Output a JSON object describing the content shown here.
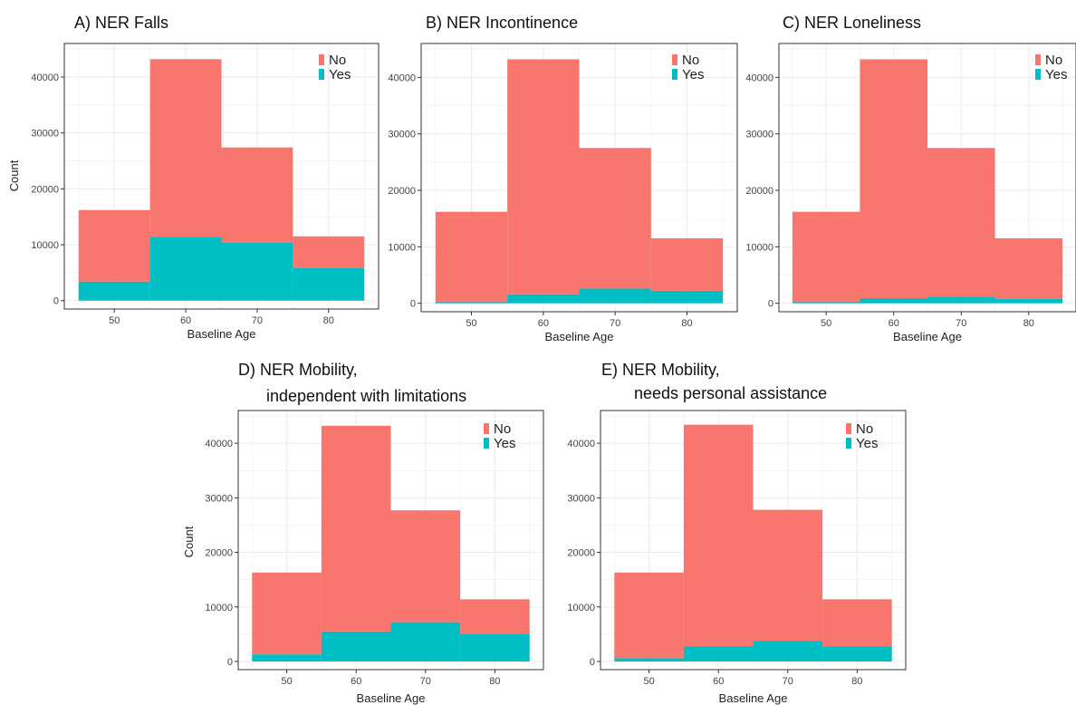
{
  "colors": {
    "no": "#F8766D",
    "yes": "#00BFC4"
  },
  "chart_data": [
    {
      "type": "bar",
      "title": "A) NER Falls",
      "xlabel": "Baseline Age",
      "ylabel": "Count",
      "xlim": [
        43,
        87
      ],
      "ylim": [
        -1500,
        46000
      ],
      "xticks": [
        50,
        60,
        70,
        80
      ],
      "yticks": [
        0,
        10000,
        20000,
        30000,
        40000
      ],
      "bins": [
        [
          45,
          55
        ],
        [
          55,
          65
        ],
        [
          65,
          75
        ],
        [
          75,
          85
        ]
      ],
      "legend": "top-right",
      "grid": true,
      "series": [
        {
          "name": "No",
          "values": [
            12800,
            31800,
            17000,
            5700
          ]
        },
        {
          "name": "Yes",
          "values": [
            3400,
            11400,
            10400,
            5800
          ]
        }
      ]
    },
    {
      "type": "bar",
      "title": "B) NER Incontinence",
      "xlabel": "Baseline Age",
      "ylabel": "",
      "xlim": [
        43,
        87
      ],
      "ylim": [
        -1500,
        46000
      ],
      "xticks": [
        50,
        60,
        70,
        80
      ],
      "yticks": [
        0,
        10000,
        20000,
        30000,
        40000
      ],
      "bins": [
        [
          45,
          55
        ],
        [
          55,
          65
        ],
        [
          65,
          75
        ],
        [
          75,
          85
        ]
      ],
      "legend": "top-right",
      "grid": true,
      "series": [
        {
          "name": "No",
          "values": [
            15900,
            41600,
            24900,
            9300
          ]
        },
        {
          "name": "Yes",
          "values": [
            300,
            1600,
            2600,
            2200
          ]
        }
      ]
    },
    {
      "type": "bar",
      "title": "C) NER Loneliness",
      "xlabel": "Baseline Age",
      "ylabel": "",
      "xlim": [
        43,
        87
      ],
      "ylim": [
        -1500,
        46000
      ],
      "xticks": [
        50,
        60,
        70,
        80
      ],
      "yticks": [
        0,
        10000,
        20000,
        30000,
        40000
      ],
      "bins": [
        [
          45,
          55
        ],
        [
          55,
          65
        ],
        [
          65,
          75
        ],
        [
          75,
          85
        ]
      ],
      "legend": "top-right",
      "grid": true,
      "series": [
        {
          "name": "No",
          "values": [
            15900,
            42300,
            26300,
            10700
          ]
        },
        {
          "name": "Yes",
          "values": [
            300,
            900,
            1200,
            800
          ]
        }
      ]
    },
    {
      "type": "bar",
      "title": "D) NER Mobility, independent with limitations",
      "xlabel": "Baseline Age",
      "ylabel": "Count",
      "xlim": [
        43,
        87
      ],
      "ylim": [
        -1500,
        46000
      ],
      "xticks": [
        50,
        60,
        70,
        80
      ],
      "yticks": [
        0,
        10000,
        20000,
        30000,
        40000
      ],
      "bins": [
        [
          45,
          55
        ],
        [
          55,
          65
        ],
        [
          65,
          75
        ],
        [
          75,
          85
        ]
      ],
      "legend": "top-right",
      "grid": true,
      "series": [
        {
          "name": "No",
          "values": [
            15000,
            37700,
            20500,
            6300
          ]
        },
        {
          "name": "Yes",
          "values": [
            1300,
            5500,
            7200,
            5100
          ]
        }
      ]
    },
    {
      "type": "bar",
      "title": "E) NER Mobility, needs personal assistance",
      "xlabel": "Baseline Age",
      "ylabel": "",
      "xlim": [
        43,
        87
      ],
      "ylim": [
        -1500,
        46000
      ],
      "xticks": [
        50,
        60,
        70,
        80
      ],
      "yticks": [
        0,
        10000,
        20000,
        30000,
        40000
      ],
      "bins": [
        [
          45,
          55
        ],
        [
          55,
          65
        ],
        [
          65,
          75
        ],
        [
          75,
          85
        ]
      ],
      "legend": "top-right",
      "grid": true,
      "series": [
        {
          "name": "No",
          "values": [
            15700,
            40600,
            24000,
            8600
          ]
        },
        {
          "name": "Yes",
          "values": [
            600,
            2800,
            3800,
            2800
          ]
        }
      ]
    }
  ]
}
